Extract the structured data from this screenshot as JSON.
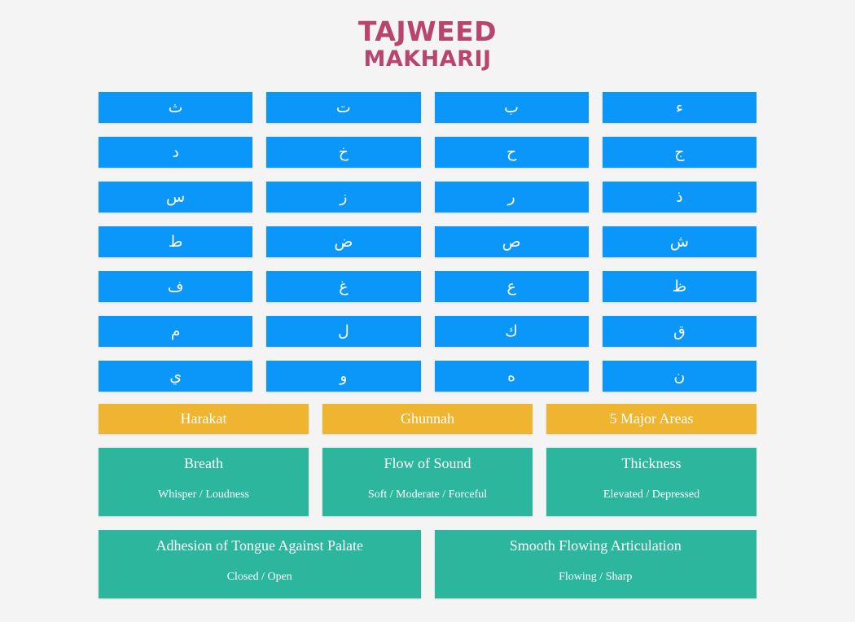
{
  "header": {
    "title_line1": "TAJWEED",
    "title_line2": "MAKHARIJ"
  },
  "colors": {
    "title": "#b9456f",
    "letter_tile": "#0b96fa",
    "category": "#f0b530",
    "attribute": "#2db69e",
    "background": "#f4f4f4"
  },
  "letters": [
    [
      "ث",
      "ت",
      "ب",
      "ء"
    ],
    [
      "د",
      "خ",
      "ح",
      "ج"
    ],
    [
      "س",
      "ز",
      "ر",
      "ذ"
    ],
    [
      "ط",
      "ض",
      "ص",
      "ش"
    ],
    [
      "ف",
      "غ",
      "ع",
      "ظ"
    ],
    [
      "م",
      "ل",
      "ك",
      "ق"
    ],
    [
      "ي",
      "و",
      "ه",
      "ن"
    ]
  ],
  "categories": [
    "Harakat",
    "Ghunnah",
    "5 Major Areas"
  ],
  "attributes_row1": [
    {
      "title": "Breath",
      "subtitle": "Whisper / Loudness"
    },
    {
      "title": "Flow of Sound",
      "subtitle": "Soft / Moderate / Forceful"
    },
    {
      "title": "Thickness",
      "subtitle": "Elevated / Depressed"
    }
  ],
  "attributes_row2": [
    {
      "title": "Adhesion of Tongue Against Palate",
      "subtitle": "Closed / Open"
    },
    {
      "title": "Smooth Flowing Articulation",
      "subtitle": "Flowing / Sharp"
    }
  ]
}
